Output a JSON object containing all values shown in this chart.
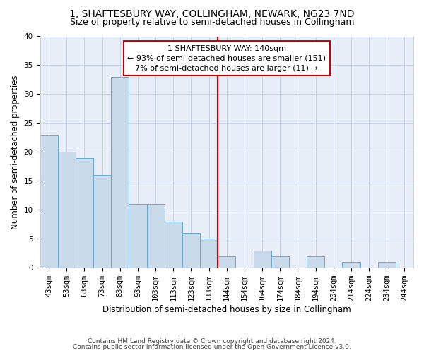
{
  "title": "1, SHAFTESBURY WAY, COLLINGHAM, NEWARK, NG23 7ND",
  "subtitle": "Size of property relative to semi-detached houses in Collingham",
  "xlabel": "Distribution of semi-detached houses by size in Collingham",
  "ylabel": "Number of semi-detached properties",
  "footnote1": "Contains HM Land Registry data © Crown copyright and database right 2024.",
  "footnote2": "Contains public sector information licensed under the Open Government Licence v3.0.",
  "categories": [
    "43sqm",
    "53sqm",
    "63sqm",
    "73sqm",
    "83sqm",
    "93sqm",
    "103sqm",
    "113sqm",
    "123sqm",
    "133sqm",
    "144sqm",
    "154sqm",
    "164sqm",
    "174sqm",
    "184sqm",
    "194sqm",
    "204sqm",
    "214sqm",
    "224sqm",
    "234sqm",
    "244sqm"
  ],
  "values": [
    23,
    20,
    19,
    16,
    33,
    11,
    11,
    8,
    6,
    5,
    2,
    0,
    3,
    2,
    0,
    2,
    0,
    1,
    0,
    1,
    0
  ],
  "bar_color": "#c9daea",
  "bar_edge_color": "#6aaad4",
  "vline_color": "#cc0000",
  "annotation_box_color": "#ffffff",
  "annotation_box_edge_color": "#cc0000",
  "marker_label": "1 SHAFTESBURY WAY: 140sqm",
  "annotation_line1": "← 93% of semi-detached houses are smaller (151)",
  "annotation_line2": "7% of semi-detached houses are larger (11) →",
  "ylim": [
    0,
    40
  ],
  "yticks": [
    0,
    5,
    10,
    15,
    20,
    25,
    30,
    35,
    40
  ],
  "grid_color": "#c8d4e4",
  "bg_color": "#e8eef8",
  "title_fontsize": 10,
  "subtitle_fontsize": 9,
  "axis_label_fontsize": 8.5,
  "tick_fontsize": 7.5,
  "annotation_fontsize": 8,
  "vline_x_index": 10.0
}
